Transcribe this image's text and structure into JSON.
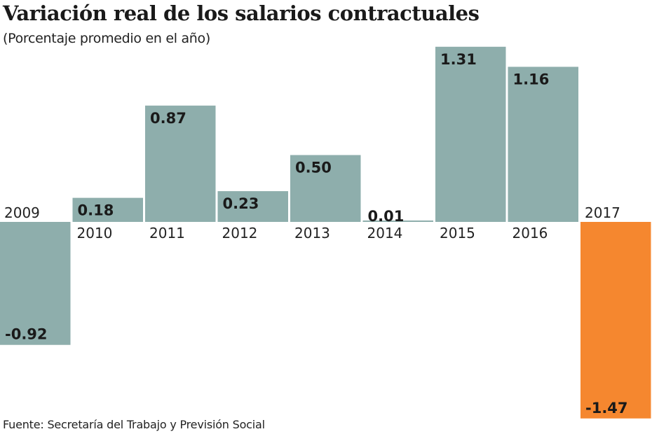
{
  "chart_data": {
    "type": "bar",
    "title": "Variación real de los salarios contractuales",
    "subtitle": "(Porcentaje promedio en el año)",
    "source": "Fuente: Secretaría del Trabajo y Previsión Social",
    "categories": [
      "2009",
      "2010",
      "2011",
      "2012",
      "2013",
      "2014",
      "2015",
      "2016",
      "2017"
    ],
    "values": [
      -0.92,
      0.18,
      0.87,
      0.23,
      0.5,
      0.01,
      1.31,
      1.16,
      -1.47
    ],
    "labels": [
      "-0.92",
      "0.18",
      "0.87",
      "0.23",
      "0.50",
      "0.01",
      "1.31",
      "1.16",
      "-1.47"
    ],
    "highlight_index": 8,
    "xlabel": "",
    "ylabel": "",
    "ylim": [
      -1.47,
      1.31
    ],
    "grid": false,
    "colors": {
      "bar": "#8eaeac",
      "highlight": "#f5872f"
    }
  }
}
